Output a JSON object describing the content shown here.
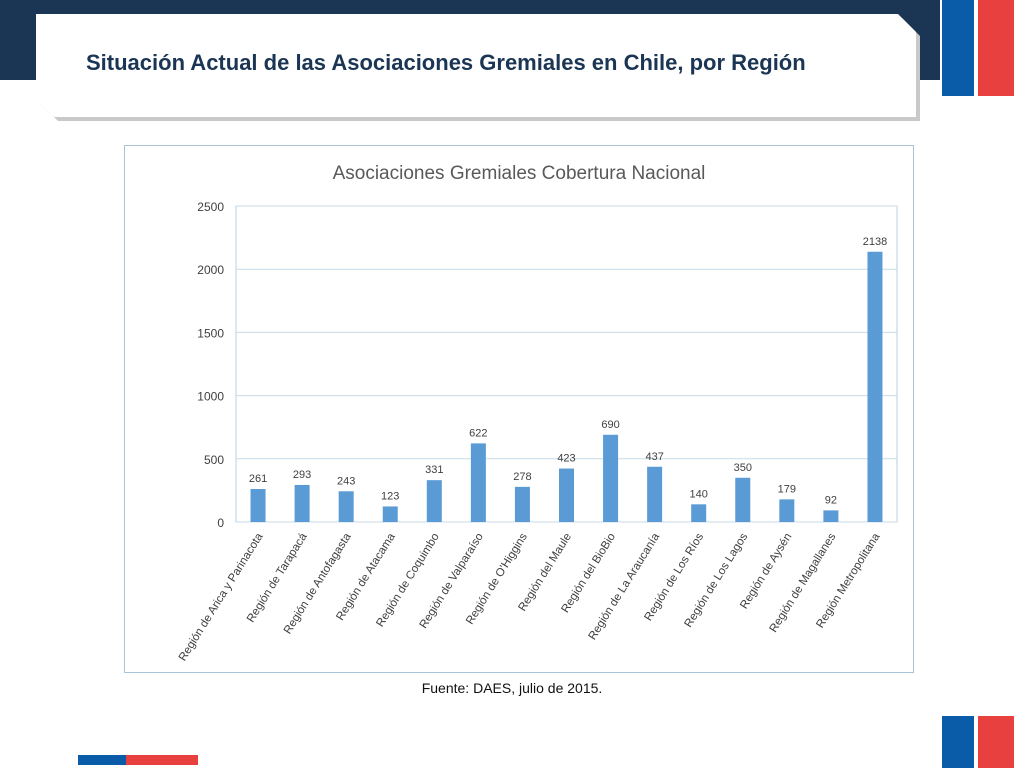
{
  "page": {
    "title": "Situación Actual de las Asociaciones Gremiales en Chile, por Región",
    "source_note": "Fuente: DAES, julio de 2015."
  },
  "colors": {
    "navy": "#1b3554",
    "flag_blue": "#0a5ca8",
    "flag_red": "#e8403e",
    "bar": "#5b9bd5",
    "gridline": "#c8dbe8"
  },
  "chart_data": {
    "type": "bar",
    "title": "Asociaciones Gremiales Cobertura Nacional",
    "categories": [
      "Región de Arica y Parinacota",
      "Región de Tarapacá",
      "Región de Antofagasta",
      "Región de Atacama",
      "Región de Coquimbo",
      "Región de Valparaíso",
      "Región de O'Higgins",
      "Región del Maule",
      "Región del BioBio",
      "Región de La Araucanía",
      "Región de Los Ríos",
      "Región de Los Lagos",
      "Región de Aysén",
      "Región de Magallanes",
      "Región Metropolitana"
    ],
    "values": [
      261,
      293,
      243,
      123,
      331,
      622,
      278,
      423,
      690,
      437,
      140,
      350,
      179,
      92,
      2138
    ],
    "yticks": [
      0,
      500,
      1000,
      1500,
      2000,
      2500
    ],
    "ylim": [
      0,
      2500
    ],
    "grid": true,
    "legend": "none",
    "data_labels": true
  }
}
